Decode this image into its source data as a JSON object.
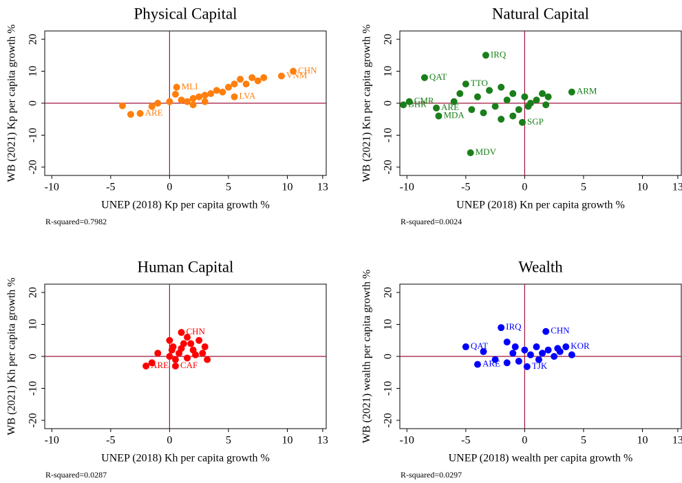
{
  "chart_data": [
    {
      "type": "scatter",
      "title": "Physical Capital",
      "x_label": "UNEP (2018) Kp per capita growth %",
      "y_label": "WB (2021) Kp per capita growth %",
      "note": "R-squared=0.7982",
      "color": "#ff7f0e",
      "x": [
        10.5,
        9.5,
        0.6,
        5.5,
        -2.5,
        -4,
        -3.3,
        -1.5,
        -1,
        0,
        0.5,
        1,
        1.5,
        2,
        2.5,
        3,
        3.5,
        4,
        4.5,
        5,
        5.5,
        6,
        6.5,
        7,
        7.5,
        8,
        2,
        3
      ],
      "y": [
        10,
        8.5,
        5,
        2,
        -3.2,
        -0.8,
        -3.5,
        -1,
        0,
        0.5,
        2.8,
        1,
        0.5,
        1.5,
        2,
        2.5,
        3,
        4,
        3.5,
        5,
        6,
        7.5,
        6,
        8,
        7,
        8,
        -0.5,
        0.5
      ],
      "point_labels": [
        "CHN",
        "VNM",
        "MLI",
        "LVA",
        "ARE",
        null,
        null,
        null,
        null,
        null,
        null,
        null,
        null,
        null,
        null,
        null,
        null,
        null,
        null,
        null,
        null,
        null,
        null,
        null,
        null,
        null,
        null,
        null
      ],
      "xlim": [
        -10.6,
        13.3
      ],
      "ylim": [
        -22.6,
        22.6
      ],
      "xticks": [
        -10,
        -5,
        0,
        5,
        10,
        13
      ],
      "yticks": [
        -20,
        -10,
        0,
        10,
        20
      ],
      "reference_lines": {
        "x": 0,
        "y": 0
      }
    },
    {
      "type": "scatter",
      "title": "Natural Capital",
      "x_label": "UNEP (2018) Kn per capita growth %",
      "y_label": "WB (2021) Kn per capita growth %",
      "note": "R-squared=0.0024",
      "color": "#1a7f1a",
      "x": [
        -3.3,
        -8.5,
        -5,
        4,
        -4.6,
        -7.3,
        -7.5,
        -10.3,
        -9.8,
        -0.2,
        -6,
        -5.5,
        -4,
        -3,
        -2.5,
        -2,
        -1.5,
        -1,
        -0.5,
        0,
        0.5,
        1,
        1.5,
        2,
        -4.5,
        -3.5,
        -2,
        -1,
        0.3,
        1.8
      ],
      "y": [
        15,
        8,
        6,
        3.5,
        -15.5,
        -4,
        -1.5,
        -0.5,
        0.5,
        -6,
        0.5,
        3,
        2,
        4,
        -1,
        5,
        1,
        3,
        -2,
        2,
        0,
        1,
        3,
        2,
        -2,
        -3,
        -5,
        -4,
        -1,
        -0.5
      ],
      "point_labels": [
        "IRQ",
        "QAT",
        "TTO",
        "ARM",
        "MDV",
        "MDA",
        "ARE",
        "BHR",
        "CMR",
        "SGP",
        null,
        null,
        null,
        null,
        null,
        null,
        null,
        null,
        null,
        null,
        null,
        null,
        null,
        null,
        null,
        null,
        null,
        null,
        null,
        null
      ],
      "xlim": [
        -10.6,
        13.3
      ],
      "ylim": [
        -22.6,
        22.6
      ],
      "xticks": [
        -10,
        -5,
        0,
        5,
        10,
        13
      ],
      "yticks": [
        -20,
        -10,
        0,
        10,
        20
      ],
      "reference_lines": {
        "x": 0,
        "y": 0
      }
    },
    {
      "type": "scatter",
      "title": "Human Capital",
      "x_label": "UNEP (2018) Kh per capita growth %",
      "y_label": "WB (2021) Kh per capita growth %",
      "note": "R-squared=0.0287",
      "color": "#ff0000",
      "x": [
        -2,
        1,
        0.5,
        -1.5,
        -1,
        0,
        0.3,
        0.8,
        1.2,
        1.5,
        2,
        2.5,
        3,
        0,
        0.5,
        1.5,
        2.2,
        2.8,
        3.2,
        1,
        0.2,
        1.8
      ],
      "y": [
        -3,
        7.5,
        -3,
        -2,
        1,
        5,
        3,
        1,
        4,
        6,
        2,
        5,
        3,
        0,
        -1,
        -0.5,
        0.5,
        1,
        -1,
        2.5,
        2,
        4
      ],
      "point_labels": [
        "ARE",
        "CHN",
        "CAF",
        null,
        null,
        null,
        null,
        null,
        null,
        null,
        null,
        null,
        null,
        null,
        null,
        null,
        null,
        null,
        null,
        null,
        null,
        null
      ],
      "xlim": [
        -10.6,
        13.3
      ],
      "ylim": [
        -22.6,
        22.6
      ],
      "xticks": [
        -10,
        -5,
        0,
        5,
        10,
        13
      ],
      "yticks": [
        -20,
        -10,
        0,
        10,
        20
      ],
      "reference_lines": {
        "x": 0,
        "y": 0
      }
    },
    {
      "type": "scatter",
      "title": "Wealth",
      "x_label": "UNEP (2018) wealth per capita growth %",
      "y_label": "WB (2021) wealth per capita growth %",
      "note": "R-squared=0.0297",
      "color": "#0000ff",
      "x": [
        -2,
        1.8,
        -5,
        -4,
        3.5,
        0.2,
        -3.5,
        -2.5,
        -1.5,
        -1,
        -0.5,
        0,
        0.5,
        1,
        1.5,
        2,
        2.5,
        3,
        4,
        -1.5,
        -0.8,
        1.2,
        2.8
      ],
      "y": [
        9,
        7.8,
        3,
        -2.5,
        3,
        -3.2,
        1.5,
        -1,
        4.5,
        1,
        -1.5,
        2,
        0.5,
        3,
        1,
        2,
        0,
        1.5,
        0.5,
        -2,
        3,
        -1,
        2.5
      ],
      "point_labels": [
        "IRQ",
        "CHN",
        "QAT",
        "ARE",
        "KOR",
        "TJK",
        null,
        null,
        null,
        null,
        null,
        null,
        null,
        null,
        null,
        null,
        null,
        null,
        null,
        null,
        null,
        null,
        null
      ],
      "xlim": [
        -10.6,
        13.3
      ],
      "ylim": [
        -22.6,
        22.6
      ],
      "xticks": [
        -10,
        -5,
        0,
        5,
        10,
        13
      ],
      "yticks": [
        -20,
        -10,
        0,
        10,
        20
      ],
      "reference_lines": {
        "x": 0,
        "y": 0
      }
    }
  ]
}
